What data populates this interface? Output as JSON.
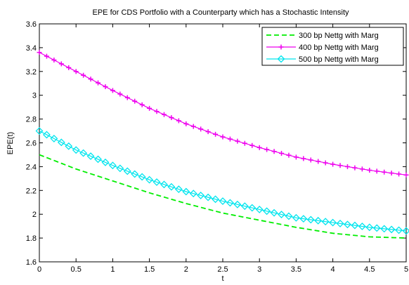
{
  "chart_data": {
    "type": "line",
    "title": "EPE for CDS Portfolio with a Counterparty which has a Stochastic Intensity",
    "xlabel": "t",
    "ylabel": "EPE(t)",
    "xlim": [
      0,
      5
    ],
    "ylim": [
      1.6,
      3.6
    ],
    "xticks": [
      0,
      0.5,
      1,
      1.5,
      2,
      2.5,
      3,
      3.5,
      4,
      4.5,
      5
    ],
    "xtick_labels": [
      "0",
      "0.5",
      "1",
      "1.5",
      "2",
      "2.5",
      "3",
      "3.5",
      "4",
      "4.5",
      "5"
    ],
    "yticks": [
      1.6,
      1.8,
      2,
      2.2,
      2.4,
      2.6,
      2.8,
      3,
      3.2,
      3.4,
      3.6
    ],
    "ytick_labels": [
      "1.6",
      "1.8",
      "2",
      "2.2",
      "2.4",
      "2.6",
      "2.8",
      "3",
      "3.2",
      "3.4",
      "3.6"
    ],
    "grid": false,
    "legend_position": "top-right",
    "x": [
      0,
      0.5,
      1,
      1.5,
      2,
      2.5,
      3,
      3.5,
      4,
      4.5,
      5
    ],
    "series": [
      {
        "name": "300 bp Nettg with Marg",
        "color": "#00ee00",
        "line_style": "dashed",
        "marker": "none",
        "values": [
          2.5,
          2.38,
          2.28,
          2.18,
          2.09,
          2.01,
          1.95,
          1.89,
          1.84,
          1.81,
          1.8
        ]
      },
      {
        "name": "400 bp Nettg with Marg",
        "color": "#ee00ee",
        "line_style": "solid",
        "marker": "plus",
        "values": [
          3.36,
          3.2,
          3.04,
          2.89,
          2.76,
          2.65,
          2.56,
          2.48,
          2.42,
          2.37,
          2.33
        ]
      },
      {
        "name": "500 bp Nettg with Marg",
        "color": "#00e5ee",
        "line_style": "solid",
        "marker": "diamond",
        "values": [
          2.7,
          2.54,
          2.41,
          2.29,
          2.19,
          2.11,
          2.04,
          1.97,
          1.93,
          1.89,
          1.86
        ]
      }
    ]
  }
}
